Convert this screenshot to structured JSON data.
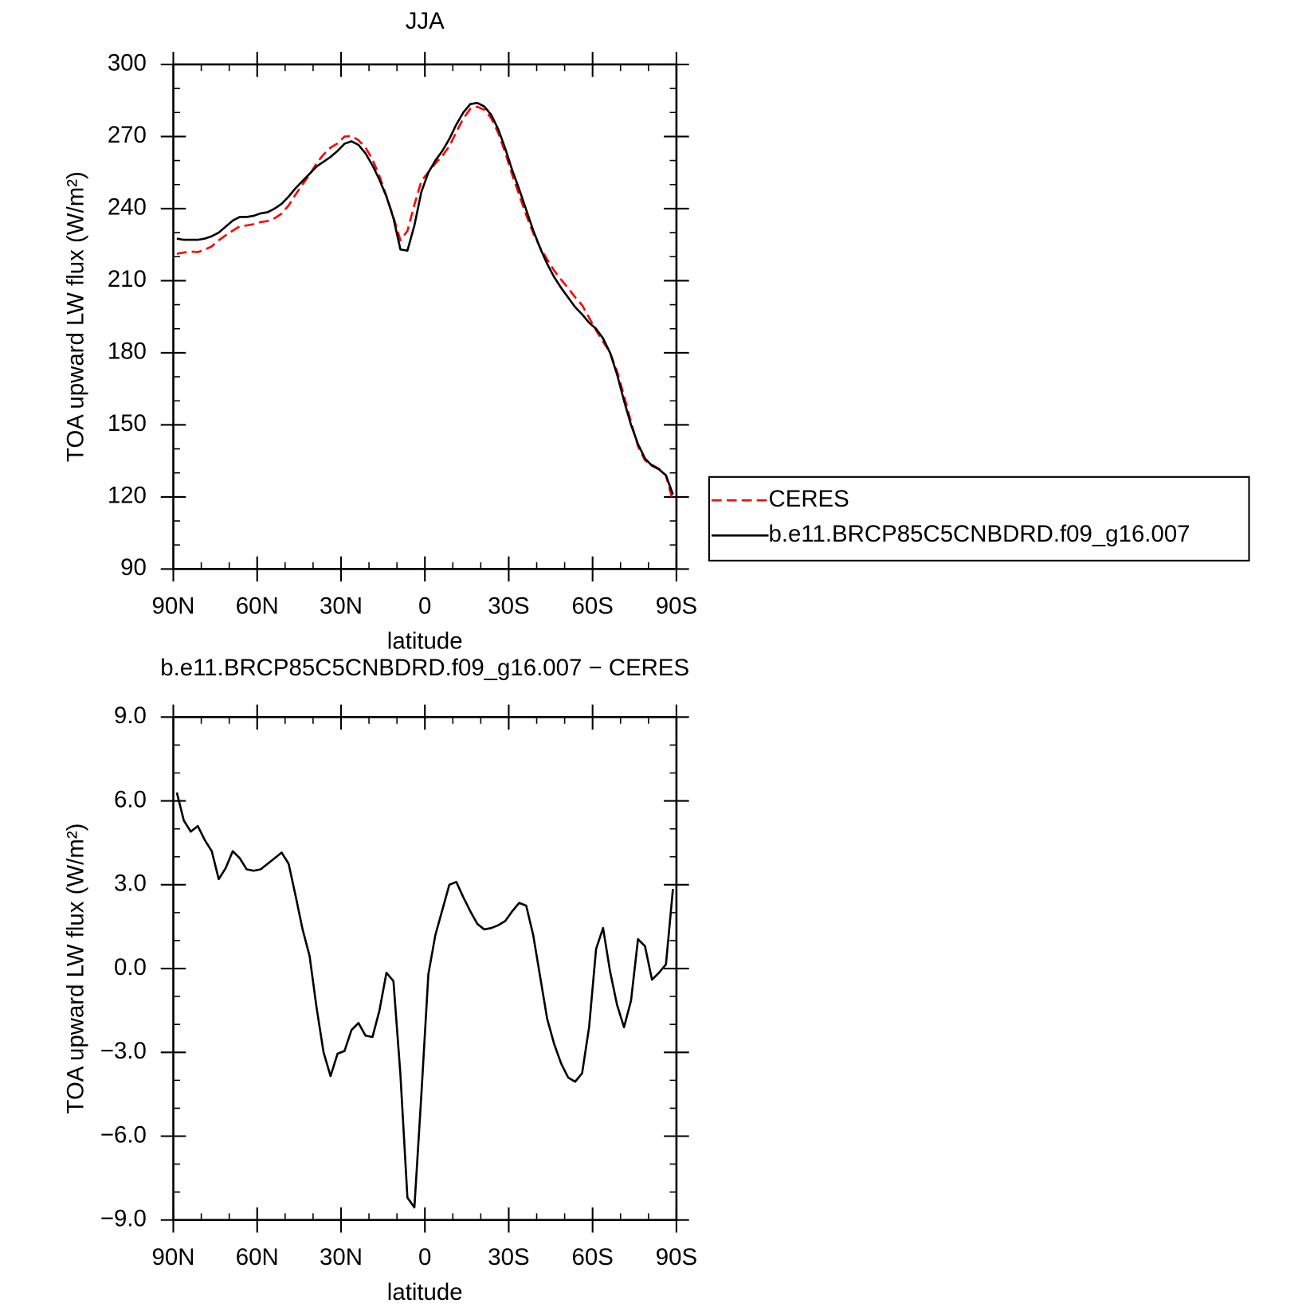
{
  "chart_data": [
    {
      "type": "line",
      "title": "JJA",
      "xlabel": "latitude",
      "ylabel": "TOA upward LW flux (W/m²)",
      "x": [
        88.75,
        86.25,
        83.75,
        81.25,
        78.75,
        76.25,
        73.75,
        71.25,
        68.75,
        66.25,
        63.75,
        61.25,
        58.75,
        56.25,
        53.75,
        51.25,
        48.75,
        46.25,
        43.75,
        41.25,
        38.75,
        36.25,
        33.75,
        31.25,
        28.75,
        26.25,
        23.75,
        21.25,
        18.75,
        16.25,
        13.75,
        11.25,
        8.75,
        6.25,
        3.75,
        1.25,
        -1.25,
        -3.75,
        -6.25,
        -8.75,
        -11.25,
        -13.75,
        -16.25,
        -18.75,
        -21.25,
        -23.75,
        -26.25,
        -28.75,
        -31.25,
        -33.75,
        -36.25,
        -38.75,
        -41.25,
        -43.75,
        -46.25,
        -48.75,
        -51.25,
        -53.75,
        -56.25,
        -58.75,
        -61.25,
        -63.75,
        -66.25,
        -68.75,
        -71.25,
        -73.75,
        -76.25,
        -78.75,
        -81.25,
        -83.75,
        -86.25,
        -88.75
      ],
      "series": [
        {
          "name": "CERES",
          "color": "#ff0000",
          "dash": "dashed",
          "values": [
            221.2,
            221.7,
            222.1,
            221.9,
            222.9,
            224.3,
            226.8,
            228.9,
            230.8,
            232.6,
            233.0,
            233.5,
            234.4,
            234.8,
            236.0,
            237.9,
            241.3,
            245.9,
            250.1,
            254.1,
            258.9,
            262.5,
            265.4,
            267.1,
            270.0,
            270.2,
            268.5,
            265.4,
            260.5,
            253.5,
            245.2,
            236.5,
            226.8,
            230.7,
            241.6,
            251.5,
            255.2,
            258.8,
            261.9,
            266.0,
            271.9,
            277.5,
            281.5,
            282.4,
            281.1,
            277.6,
            271.5,
            263.3,
            254.0,
            245.7,
            237.3,
            229.8,
            223.8,
            218.8,
            214.2,
            210.4,
            206.9,
            203.1,
            199.8,
            194.6,
            189.3,
            184.6,
            180.1,
            172.3,
            162.1,
            151.2,
            141.0,
            135.2,
            133.4,
            131.7,
            128.9,
            118.2
          ]
        },
        {
          "name": "b.e11.BRCP85C5CNBDRD.f09_g16.007",
          "color": "#000000",
          "dash": "solid",
          "values": [
            227.5,
            227,
            227,
            227,
            227.5,
            228.5,
            230,
            232.5,
            235,
            236.5,
            236.5,
            237,
            238,
            238.5,
            240,
            242,
            245,
            248.5,
            251.5,
            254.5,
            257.5,
            259.5,
            261.5,
            264,
            267,
            268,
            266.5,
            263,
            258,
            252,
            245,
            236,
            223,
            222.5,
            233,
            247,
            255,
            260,
            264,
            269,
            275,
            280,
            283.5,
            284,
            282.5,
            279,
            273,
            265,
            256,
            248,
            239.5,
            231,
            223.5,
            217,
            211.5,
            207,
            203,
            199,
            196,
            192.5,
            190,
            186,
            180,
            171,
            160,
            150,
            142,
            136,
            133,
            131.5,
            129,
            121
          ]
        }
      ],
      "xlim": [
        90,
        -90
      ],
      "xticks": [
        {
          "value": 90,
          "label": "90N"
        },
        {
          "value": 60,
          "label": "60N"
        },
        {
          "value": 30,
          "label": "30N"
        },
        0,
        {
          "value": -30,
          "label": "30S"
        },
        {
          "value": -60,
          "label": "60S"
        },
        {
          "value": -90,
          "label": "90S"
        }
      ],
      "ylim": [
        90,
        300
      ],
      "yticks": [
        90,
        120,
        150,
        180,
        210,
        240,
        270,
        300
      ],
      "legend": "right"
    },
    {
      "type": "line",
      "title": "b.e11.BRCP85C5CNBDRD.f09_g16.007 − CERES",
      "xlabel": "latitude",
      "ylabel": "TOA upward LW flux (W/m²)",
      "x": [
        88.75,
        86.25,
        83.75,
        81.25,
        78.75,
        76.25,
        73.75,
        71.25,
        68.75,
        66.25,
        63.75,
        61.25,
        58.75,
        56.25,
        53.75,
        51.25,
        48.75,
        46.25,
        43.75,
        41.25,
        38.75,
        36.25,
        33.75,
        31.25,
        28.75,
        26.25,
        23.75,
        21.25,
        18.75,
        16.25,
        13.75,
        11.25,
        8.75,
        6.25,
        3.75,
        1.25,
        -1.25,
        -3.75,
        -6.25,
        -8.75,
        -11.25,
        -13.75,
        -16.25,
        -18.75,
        -21.25,
        -23.75,
        -26.25,
        -28.75,
        -31.25,
        -33.75,
        -36.25,
        -38.75,
        -41.25,
        -43.75,
        -46.25,
        -48.75,
        -51.25,
        -53.75,
        -56.25,
        -58.75,
        -61.25,
        -63.75,
        -66.25,
        -68.75,
        -71.25,
        -73.75,
        -76.25,
        -78.75,
        -81.25,
        -83.75,
        -86.25,
        -88.75
      ],
      "values": [
        6.3,
        5.3,
        4.9,
        5.1,
        4.6,
        4.2,
        3.2,
        3.6,
        4.2,
        3.95,
        3.55,
        3.5,
        3.55,
        3.75,
        3.95,
        4.15,
        3.75,
        2.6,
        1.4,
        0.45,
        -1.4,
        -3.0,
        -3.85,
        -3.05,
        -2.95,
        -2.2,
        -1.95,
        -2.4,
        -2.45,
        -1.5,
        -0.15,
        -0.45,
        -3.8,
        -8.2,
        -8.55,
        -4.5,
        -0.2,
        1.2,
        2.1,
        3.0,
        3.1,
        2.55,
        2.05,
        1.6,
        1.4,
        1.45,
        1.55,
        1.7,
        2.05,
        2.35,
        2.25,
        1.2,
        -0.3,
        -1.8,
        -2.7,
        -3.4,
        -3.9,
        -4.05,
        -3.75,
        -2.1,
        0.7,
        1.45,
        -0.1,
        -1.3,
        -2.1,
        -1.15,
        1.05,
        0.8,
        -0.4,
        -0.15,
        0.15,
        2.85
      ],
      "color": "#000000",
      "xlim": [
        90,
        -90
      ],
      "xticks": [
        {
          "value": 90,
          "label": "90N"
        },
        {
          "value": 60,
          "label": "60N"
        },
        {
          "value": 30,
          "label": "30N"
        },
        0,
        {
          "value": -30,
          "label": "30S"
        },
        {
          "value": -60,
          "label": "60S"
        },
        {
          "value": -90,
          "label": "90S"
        }
      ],
      "ylim": [
        -9,
        9
      ],
      "yticks": [
        {
          "value": -9,
          "label": "−9.0"
        },
        {
          "value": -6,
          "label": "−6.0"
        },
        {
          "value": -3,
          "label": "−3.0"
        },
        {
          "value": 0,
          "label": "0.0"
        },
        {
          "value": 3,
          "label": "3.0"
        },
        {
          "value": 6,
          "label": "6.0"
        },
        {
          "value": 9,
          "label": "9.0"
        }
      ]
    }
  ]
}
